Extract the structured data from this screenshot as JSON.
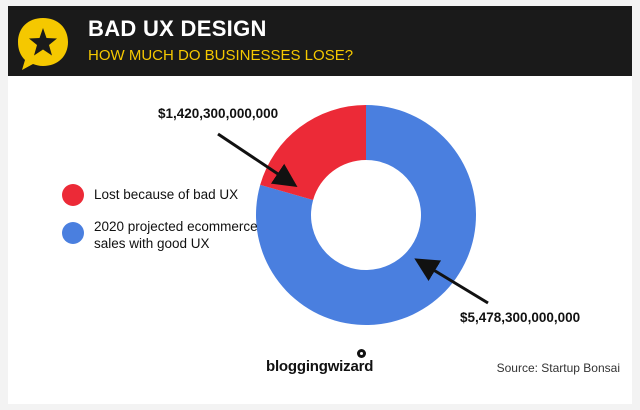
{
  "header": {
    "title": "BAD UX DESIGN",
    "subtitle": "HOW MUCH DO BUSINESSES LOSE?",
    "icon": "star-speech-bubble-icon",
    "accent_color": "#f5c800"
  },
  "chart_data": {
    "type": "pie",
    "donut": true,
    "title": "",
    "categories": [
      "Lost because of bad UX",
      "2020 projected ecommerce sales with good UX"
    ],
    "values": [
      1420300000000,
      5478300000000
    ],
    "value_labels": [
      "$1,420,300,000,000",
      "$5,478,300,000,000"
    ],
    "colors": [
      "#ec2a37",
      "#4a7fdf"
    ],
    "legend_position": "left"
  },
  "legend": [
    {
      "label_line1": "Lost because of bad UX",
      "label_line2": ""
    },
    {
      "label_line1": "2020 projected ecommerce",
      "label_line2": "sales with good UX"
    }
  ],
  "footer": {
    "brand": "bloggingwizard",
    "source": "Source: Startup Bonsai"
  }
}
